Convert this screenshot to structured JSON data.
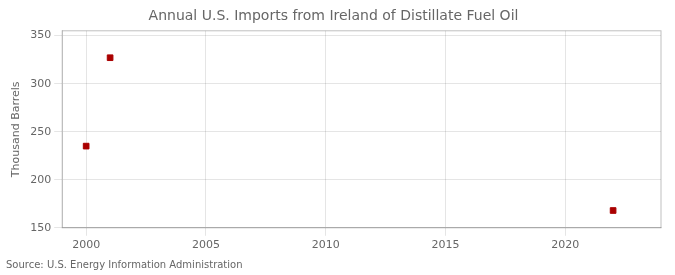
{
  "chart_data": {
    "type": "scatter",
    "title": "Annual U.S. Imports from Ireland of Distillate Fuel Oil",
    "ylabel": "Thousand Barrels",
    "annotation": "Source: U.S. Energy Information Administration",
    "x": [
      2001,
      2000,
      2022
    ],
    "values": [
      327,
      235,
      168
    ],
    "color": "#aa0000",
    "marker": "square",
    "xlim": [
      1999,
      2024
    ],
    "xticks": [
      2000,
      2005,
      2010,
      2015,
      2020
    ],
    "ylim": [
      150,
      355
    ],
    "yticks": [
      150,
      200,
      250,
      300,
      350
    ],
    "grid": true
  }
}
